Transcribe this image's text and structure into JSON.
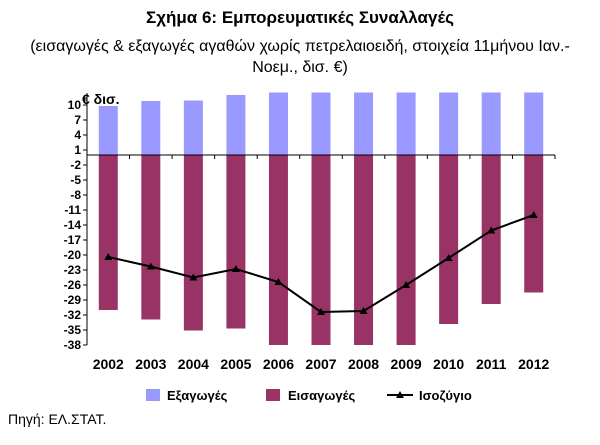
{
  "title": "Σχήμα 6: Εμπορευματικές Συναλλαγές",
  "subtitle": "(εισαγωγές & εξαγωγές αγαθών χωρίς πετρελαιοειδή, στοιχεία 11μήνου Ιαν.-Νοεμ., δισ. €)",
  "source": "Πηγή: ΕΛ.ΣΤΑΤ.",
  "chart_data": {
    "type": "bar",
    "ylabel": "€ δισ.",
    "categories": [
      "2002",
      "2003",
      "2004",
      "2005",
      "2006",
      "2007",
      "2008",
      "2009",
      "2010",
      "2011",
      "2012"
    ],
    "ylim": [
      -38,
      12
    ],
    "yticks": [
      "10",
      "7",
      "4",
      "1",
      "-2",
      "-5",
      "-8",
      "-11",
      "-14",
      "-17",
      "-20",
      "-23",
      "-26",
      "-29",
      "-32",
      "-35",
      "-38"
    ],
    "ytick_values": [
      10,
      7,
      4,
      1,
      -2,
      -5,
      -8,
      -11,
      -14,
      -17,
      -20,
      -23,
      -26,
      -29,
      -32,
      -35,
      -38
    ],
    "grid": false,
    "legend_position": "bottom",
    "series": [
      {
        "name": "Εξαγωγές",
        "type": "bar",
        "color": "#9999ff",
        "values": [
          9.8,
          10.8,
          10.9,
          12.0,
          12.5,
          12.5,
          12.5,
          12.5,
          12.5,
          12.5,
          12.5
        ]
      },
      {
        "name": "Εισαγωγές",
        "type": "bar",
        "color": "#993366",
        "values": [
          -31.0,
          -32.9,
          -35.1,
          -34.7,
          -38.0,
          -38.0,
          -38.0,
          -38.0,
          -33.8,
          -29.8,
          -27.5
        ]
      },
      {
        "name": "Ισοζύγιο",
        "type": "line",
        "color": "#000000",
        "values": [
          -20.4,
          -22.3,
          -24.5,
          -22.8,
          -25.4,
          -31.4,
          -31.2,
          -26.0,
          -20.6,
          -15.1,
          -12.0
        ]
      }
    ]
  }
}
